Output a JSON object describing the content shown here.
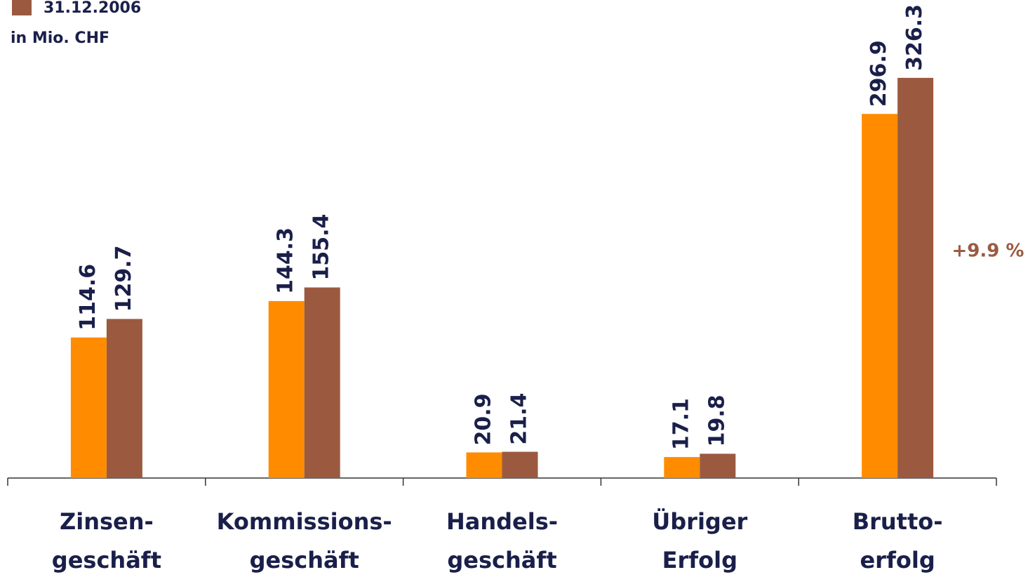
{
  "chart_data": {
    "type": "bar",
    "subtitle": "in Mio. CHF",
    "annotation": "+9.9 %",
    "categories": [
      [
        "Zinsen-",
        "geschäft"
      ],
      [
        "Kommissions-",
        "geschäft"
      ],
      [
        "Handels-",
        "geschäft"
      ],
      [
        "Übriger",
        "Erfolg"
      ],
      [
        "Brutto-",
        "erfolg"
      ]
    ],
    "series": [
      {
        "color": "#ff8c00",
        "values": [
          114.6,
          144.3,
          20.9,
          17.1,
          296.9
        ]
      },
      {
        "name": "31.12.2006",
        "color": "#9b5a40",
        "values": [
          129.7,
          155.4,
          21.4,
          19.8,
          326.3
        ]
      }
    ],
    "ylim": [
      0,
      350
    ]
  }
}
